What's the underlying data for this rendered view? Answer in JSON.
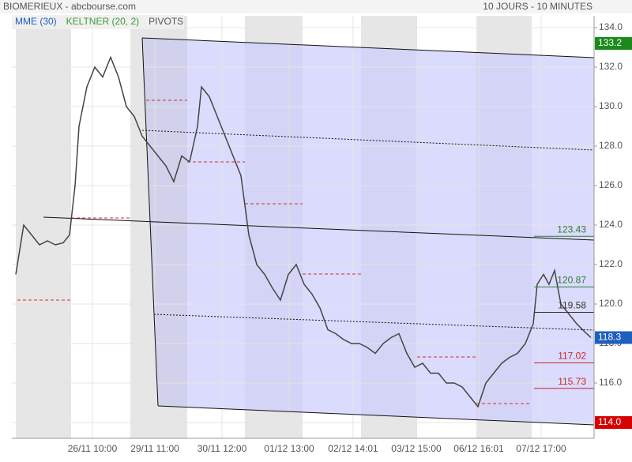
{
  "chart_data": {
    "type": "line",
    "title": "BIOMERIEUX - abcbourse.com",
    "subtitle": "10 JOURS - 10 MINUTES",
    "indicators": [
      {
        "name": "MME (30)",
        "color": "#1f5fbf"
      },
      {
        "name": "KELTNER (20, 2)",
        "color": "#3a9a3a"
      },
      {
        "name": "PIVOTS",
        "color": "#555555"
      }
    ],
    "x": [
      5,
      15,
      25,
      35,
      45,
      55,
      65,
      73,
      80,
      85,
      95,
      105,
      115,
      125,
      135,
      145,
      155,
      165,
      175,
      185,
      195,
      205,
      215,
      225,
      235,
      240,
      250,
      260,
      270,
      280,
      290,
      300,
      310,
      320,
      330,
      340,
      350,
      360,
      370,
      380,
      390,
      400,
      410,
      420,
      430,
      440,
      450,
      460,
      470,
      480,
      490,
      500,
      510,
      520,
      530,
      540,
      550,
      560,
      570,
      580,
      590,
      600,
      610,
      620,
      630,
      640,
      650,
      660,
      665,
      673,
      680,
      687,
      695,
      705,
      715,
      725,
      733
    ],
    "series": [
      {
        "color": "#444444",
        "values": [
          121.5,
          124,
          123.5,
          123,
          123.2,
          123,
          123.1,
          123.5,
          126,
          129,
          131,
          132,
          131.5,
          132.5,
          131.5,
          130,
          129.5,
          128.5,
          128,
          127.5,
          127,
          126.2,
          127.5,
          127.2,
          129,
          131,
          130.5,
          129.5,
          128.5,
          127.5,
          126.5,
          123.5,
          122,
          121.5,
          120.8,
          120.2,
          121.5,
          122,
          121,
          120.5,
          119.8,
          118.7,
          118.5,
          118.2,
          118,
          118,
          117.8,
          117.5,
          118,
          118.3,
          118.5,
          117.5,
          116.8,
          117,
          116.5,
          116.5,
          116,
          116,
          115.8,
          115.3,
          114.8,
          116,
          116.5,
          117,
          117.3,
          117.5,
          118,
          119,
          121,
          121.5,
          121,
          121.7,
          120,
          119.5,
          119,
          118.6,
          118.3
        ]
      }
    ],
    "xlim": [
      0,
      737
    ],
    "xticks": [
      {
        "value": 102,
        "label": "26/11 10:00"
      },
      {
        "value": 181,
        "label": "29/11 11:00"
      },
      {
        "value": 266,
        "label": "30/11 12:00"
      },
      {
        "value": 351,
        "label": "01/12 13:00"
      },
      {
        "value": 432,
        "label": "02/12 14:01"
      },
      {
        "value": 512,
        "label": "03/12 15:00"
      },
      {
        "value": 591,
        "label": "06/12 16:01"
      },
      {
        "value": 670,
        "label": "07/12 17:00"
      }
    ],
    "ylim": [
      113.2,
      134.6
    ],
    "yticks": [
      {
        "value": 114,
        "label": "114.0"
      },
      {
        "value": 116,
        "label": "116.0"
      },
      {
        "value": 118,
        "label": "118.0"
      },
      {
        "value": 120,
        "label": "120.0"
      },
      {
        "value": 122,
        "label": "122.0"
      },
      {
        "value": 124,
        "label": "124.0"
      },
      {
        "value": 126,
        "label": "126.0"
      },
      {
        "value": 128,
        "label": "128.0"
      },
      {
        "value": 130,
        "label": "130.0"
      },
      {
        "value": 132,
        "label": "132.0"
      },
      {
        "value": 134,
        "label": "134.0"
      }
    ],
    "levels": [
      {
        "value": 123.43,
        "color": "#2e7d32"
      },
      {
        "value": 120.87,
        "color": "#2e7d32"
      },
      {
        "value": 119.58,
        "color": "#333333"
      },
      {
        "value": 117.02,
        "color": "#c62828"
      },
      {
        "value": 115.73,
        "color": "#c62828"
      }
    ],
    "price_tags": [
      {
        "value": 133.2,
        "label": "133.2",
        "color": "#1b8a1b"
      },
      {
        "value": 118.3,
        "label": "118.3",
        "color": "#1f5fbf"
      },
      {
        "value": 114,
        "label": "114.0",
        "color": "#d50000"
      }
    ]
  }
}
